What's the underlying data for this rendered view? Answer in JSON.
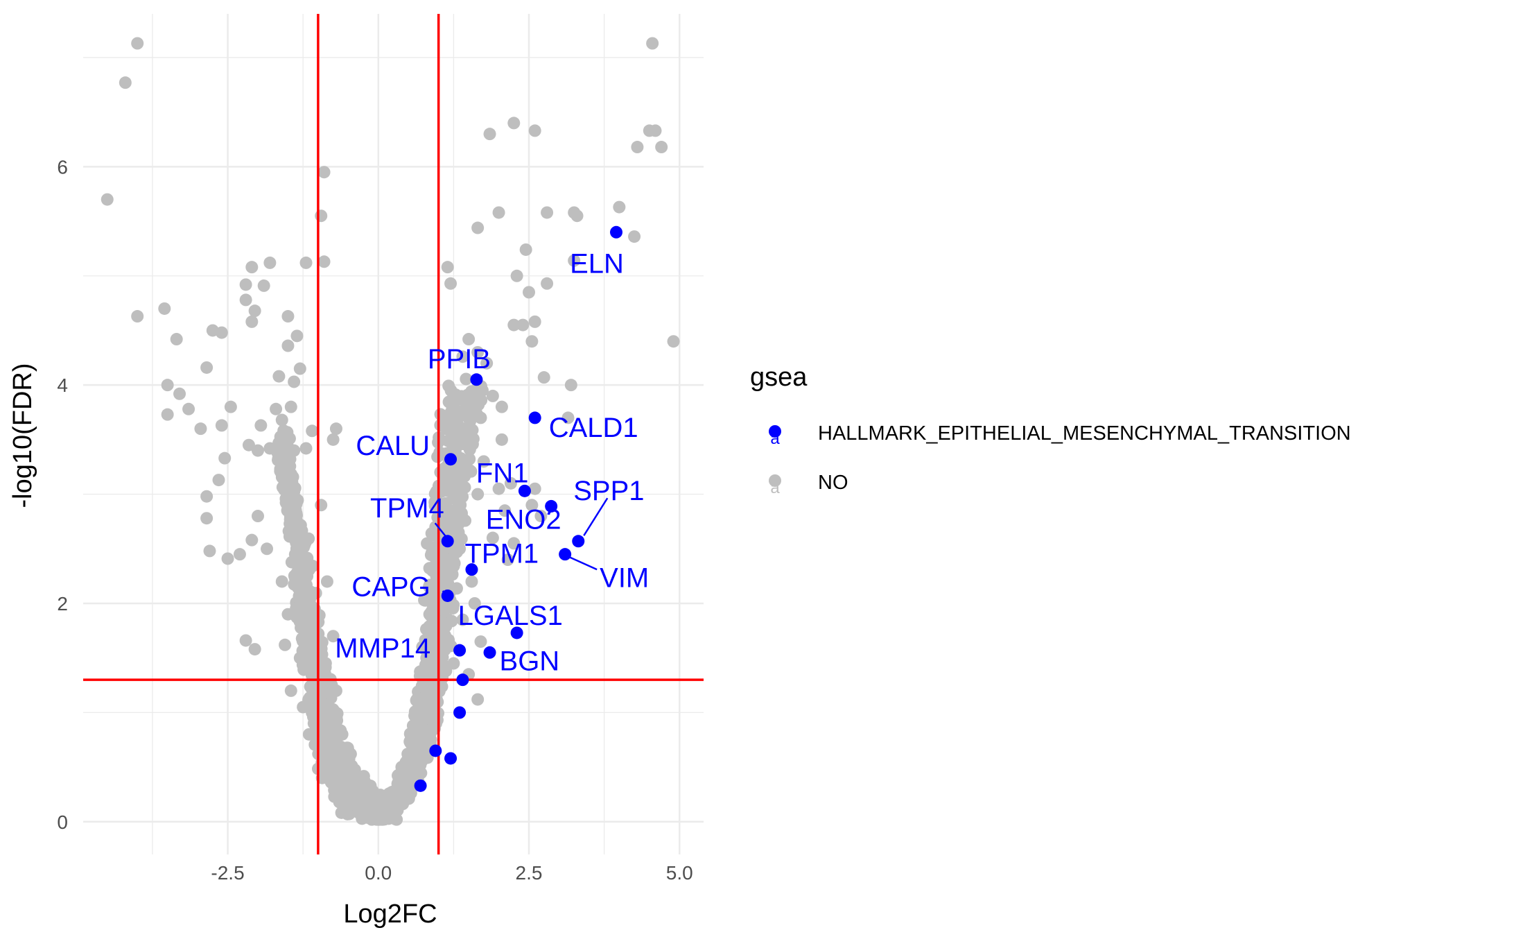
{
  "chart_data": {
    "type": "scatter",
    "title": "",
    "xlabel": "Log2FC",
    "ylabel": "-log10(FDR)",
    "xlim": [
      -4.9,
      5.4
    ],
    "ylim": [
      -0.3,
      7.4
    ],
    "x_ticks": [
      -2.5,
      0.0,
      2.5,
      5.0
    ],
    "x_tick_labels": [
      "-2.5",
      "0.0",
      "2.5",
      "5.0"
    ],
    "y_ticks": [
      0,
      2,
      4,
      6
    ],
    "y_tick_labels": [
      "0",
      "2",
      "4",
      "6"
    ],
    "grid": true,
    "threshold_lines": {
      "vertical": [
        -1,
        1
      ],
      "horizontal": [
        1.3
      ],
      "color": "#ff0000"
    },
    "legend": {
      "title": "gsea",
      "position": "right",
      "entries": [
        {
          "label": "HALLMARK_EPITHELIAL_MESENCHYMAL_TRANSITION",
          "color": "#0000ff"
        },
        {
          "label": "NO",
          "color": "#bebebe"
        }
      ]
    },
    "series": [
      {
        "name": "HALLMARK_EPITHELIAL_MESENCHYMAL_TRANSITION",
        "color": "#0000ff",
        "points": [
          {
            "x": 3.95,
            "y": 5.4,
            "label": "ELN"
          },
          {
            "x": 1.63,
            "y": 4.05,
            "label": "PPIB"
          },
          {
            "x": 2.6,
            "y": 3.7,
            "label": "CALD1"
          },
          {
            "x": 1.2,
            "y": 3.32,
            "label": "CALU"
          },
          {
            "x": 2.43,
            "y": 3.03,
            "label": "FN1"
          },
          {
            "x": 2.87,
            "y": 2.89,
            "label": "ENO2"
          },
          {
            "x": 3.32,
            "y": 2.57,
            "label": "SPP1"
          },
          {
            "x": 3.1,
            "y": 2.45,
            "label": "VIM"
          },
          {
            "x": 1.15,
            "y": 2.57,
            "label": "TPM4"
          },
          {
            "x": 1.55,
            "y": 2.31,
            "label": "TPM1"
          },
          {
            "x": 1.15,
            "y": 2.07,
            "label": "CAPG"
          },
          {
            "x": 2.3,
            "y": 1.73,
            "label": "LGALS1"
          },
          {
            "x": 1.85,
            "y": 1.55,
            "label": "BGN"
          },
          {
            "x": 1.35,
            "y": 1.57,
            "label": "MMP14"
          },
          {
            "x": 1.4,
            "y": 1.3
          },
          {
            "x": 1.35,
            "y": 1.0
          },
          {
            "x": 1.2,
            "y": 0.58
          },
          {
            "x": 0.95,
            "y": 0.65
          },
          {
            "x": 0.7,
            "y": 0.33
          }
        ]
      },
      {
        "name": "NO",
        "color": "#bebebe",
        "points": [
          {
            "x": -4.5,
            "y": 5.7
          },
          {
            "x": -4.2,
            "y": 6.77
          },
          {
            "x": -4.0,
            "y": 7.13
          },
          {
            "x": -4.0,
            "y": 4.63
          },
          {
            "x": -3.55,
            "y": 4.7
          },
          {
            "x": -3.35,
            "y": 4.42
          },
          {
            "x": -3.5,
            "y": 4.0
          },
          {
            "x": -3.3,
            "y": 3.92
          },
          {
            "x": -3.5,
            "y": 3.73
          },
          {
            "x": -3.15,
            "y": 3.78
          },
          {
            "x": -2.95,
            "y": 3.6
          },
          {
            "x": -2.85,
            "y": 4.16
          },
          {
            "x": -2.75,
            "y": 4.5
          },
          {
            "x": -2.6,
            "y": 4.48
          },
          {
            "x": -2.6,
            "y": 3.63
          },
          {
            "x": -2.45,
            "y": 3.8
          },
          {
            "x": -2.55,
            "y": 3.33
          },
          {
            "x": -2.65,
            "y": 3.13
          },
          {
            "x": -2.85,
            "y": 2.98
          },
          {
            "x": -2.85,
            "y": 2.78
          },
          {
            "x": -2.8,
            "y": 2.48
          },
          {
            "x": -2.5,
            "y": 2.41
          },
          {
            "x": -2.3,
            "y": 2.45
          },
          {
            "x": -2.1,
            "y": 2.58
          },
          {
            "x": -2.2,
            "y": 1.66
          },
          {
            "x": -2.05,
            "y": 1.58
          },
          {
            "x": -2.1,
            "y": 5.08
          },
          {
            "x": -2.2,
            "y": 4.92
          },
          {
            "x": -1.8,
            "y": 5.12
          },
          {
            "x": -1.9,
            "y": 4.91
          },
          {
            "x": -2.2,
            "y": 4.78
          },
          {
            "x": -2.05,
            "y": 4.68
          },
          {
            "x": -2.1,
            "y": 4.58
          },
          {
            "x": -1.5,
            "y": 4.63
          },
          {
            "x": -1.35,
            "y": 4.45
          },
          {
            "x": -1.5,
            "y": 4.36
          },
          {
            "x": -1.3,
            "y": 4.15
          },
          {
            "x": -1.65,
            "y": 4.08
          },
          {
            "x": -1.4,
            "y": 4.03
          },
          {
            "x": -1.7,
            "y": 3.78
          },
          {
            "x": -1.45,
            "y": 3.8
          },
          {
            "x": -1.95,
            "y": 3.63
          },
          {
            "x": -1.6,
            "y": 3.68
          },
          {
            "x": -1.2,
            "y": 5.12
          },
          {
            "x": -0.9,
            "y": 5.13
          },
          {
            "x": -0.95,
            "y": 5.55
          },
          {
            "x": -0.9,
            "y": 5.95
          },
          {
            "x": -1.1,
            "y": 3.58
          },
          {
            "x": -0.75,
            "y": 3.5
          },
          {
            "x": -0.7,
            "y": 3.6
          },
          {
            "x": -2.15,
            "y": 3.45
          },
          {
            "x": -2.0,
            "y": 3.4
          },
          {
            "x": -1.8,
            "y": 3.42
          },
          {
            "x": -1.6,
            "y": 3.35
          },
          {
            "x": -1.4,
            "y": 3.4
          },
          {
            "x": -1.2,
            "y": 3.42
          },
          {
            "x": -2.0,
            "y": 2.8
          },
          {
            "x": -1.85,
            "y": 2.5
          },
          {
            "x": -1.6,
            "y": 2.2
          },
          {
            "x": -1.5,
            "y": 1.9
          },
          {
            "x": -1.55,
            "y": 1.62
          },
          {
            "x": -1.3,
            "y": 1.5
          },
          {
            "x": -1.45,
            "y": 1.2
          },
          {
            "x": -1.25,
            "y": 1.05
          },
          {
            "x": -1.15,
            "y": 0.8
          },
          {
            "x": -0.95,
            "y": 2.9
          },
          {
            "x": -0.85,
            "y": 2.2
          },
          {
            "x": -0.75,
            "y": 1.7
          },
          {
            "x": -0.7,
            "y": 1.2
          },
          {
            "x": -0.6,
            "y": 0.8
          },
          {
            "x": -0.5,
            "y": 0.55
          },
          {
            "x": -0.4,
            "y": 0.38
          },
          {
            "x": -0.3,
            "y": 0.25
          },
          {
            "x": -0.2,
            "y": 0.15
          },
          {
            "x": -0.1,
            "y": 0.08
          },
          {
            "x": 0.0,
            "y": 0.05
          },
          {
            "x": 0.1,
            "y": 0.08
          },
          {
            "x": 0.2,
            "y": 0.15
          },
          {
            "x": 0.3,
            "y": 0.25
          },
          {
            "x": 0.4,
            "y": 0.38
          },
          {
            "x": 0.5,
            "y": 0.55
          },
          {
            "x": 0.6,
            "y": 0.8
          },
          {
            "x": 0.7,
            "y": 1.1
          },
          {
            "x": 0.8,
            "y": 1.5
          },
          {
            "x": 0.85,
            "y": 1.9
          },
          {
            "x": 0.9,
            "y": 2.3
          },
          {
            "x": 0.95,
            "y": 2.7
          },
          {
            "x": 1.05,
            "y": 3.2
          },
          {
            "x": 1.15,
            "y": 3.6
          },
          {
            "x": 1.25,
            "y": 3.9
          },
          {
            "x": 1.15,
            "y": 5.08
          },
          {
            "x": 1.2,
            "y": 4.93
          },
          {
            "x": 1.5,
            "y": 4.42
          },
          {
            "x": 1.4,
            "y": 4.26
          },
          {
            "x": 1.65,
            "y": 4.3
          },
          {
            "x": 1.8,
            "y": 4.2
          },
          {
            "x": 1.6,
            "y": 3.95
          },
          {
            "x": 1.7,
            "y": 3.7
          },
          {
            "x": 1.9,
            "y": 3.9
          },
          {
            "x": 2.05,
            "y": 3.8
          },
          {
            "x": 1.5,
            "y": 3.5
          },
          {
            "x": 1.75,
            "y": 3.3
          },
          {
            "x": 1.65,
            "y": 3.0
          },
          {
            "x": 2.0,
            "y": 3.05
          },
          {
            "x": 2.2,
            "y": 3.1
          },
          {
            "x": 2.1,
            "y": 2.85
          },
          {
            "x": 1.9,
            "y": 2.6
          },
          {
            "x": 2.25,
            "y": 2.55
          },
          {
            "x": 2.55,
            "y": 2.9
          },
          {
            "x": 2.7,
            "y": 2.8
          },
          {
            "x": 2.6,
            "y": 3.05
          },
          {
            "x": 1.55,
            "y": 2.2
          },
          {
            "x": 1.4,
            "y": 1.85
          },
          {
            "x": 1.25,
            "y": 1.45
          },
          {
            "x": 1.5,
            "y": 1.35
          },
          {
            "x": 1.65,
            "y": 1.12
          },
          {
            "x": 2.25,
            "y": 4.55
          },
          {
            "x": 2.4,
            "y": 4.55
          },
          {
            "x": 2.55,
            "y": 4.4
          },
          {
            "x": 2.6,
            "y": 4.58
          },
          {
            "x": 2.5,
            "y": 4.85
          },
          {
            "x": 2.8,
            "y": 4.93
          },
          {
            "x": 2.3,
            "y": 5.0
          },
          {
            "x": 2.0,
            "y": 5.58
          },
          {
            "x": 1.65,
            "y": 5.44
          },
          {
            "x": 2.8,
            "y": 5.58
          },
          {
            "x": 3.25,
            "y": 5.58
          },
          {
            "x": 3.3,
            "y": 5.55
          },
          {
            "x": 4.0,
            "y": 5.63
          },
          {
            "x": 4.25,
            "y": 5.36
          },
          {
            "x": 2.45,
            "y": 5.24
          },
          {
            "x": 3.25,
            "y": 5.14
          },
          {
            "x": 2.75,
            "y": 4.07
          },
          {
            "x": 3.2,
            "y": 4.0
          },
          {
            "x": 3.15,
            "y": 3.7
          },
          {
            "x": 1.85,
            "y": 6.3
          },
          {
            "x": 2.25,
            "y": 6.4
          },
          {
            "x": 2.6,
            "y": 6.33
          },
          {
            "x": 4.3,
            "y": 6.18
          },
          {
            "x": 4.5,
            "y": 6.33
          },
          {
            "x": 4.6,
            "y": 6.33
          },
          {
            "x": 4.7,
            "y": 6.18
          },
          {
            "x": 4.55,
            "y": 7.13
          },
          {
            "x": 4.9,
            "y": 4.4
          },
          {
            "x": 2.05,
            "y": 3.5
          },
          {
            "x": 2.15,
            "y": 2.4
          },
          {
            "x": 1.6,
            "y": 2.0
          },
          {
            "x": 1.35,
            "y": 2.5
          },
          {
            "x": 1.3,
            "y": 2.95
          },
          {
            "x": 1.7,
            "y": 1.65
          }
        ]
      }
    ],
    "dense_cloud": {
      "description_series": "NO",
      "left_arm": [
        [
          -1.6,
          3.5
        ],
        [
          -1.4,
          2.8
        ],
        [
          -1.25,
          2.2
        ],
        [
          -1.1,
          1.6
        ],
        [
          -0.95,
          1.1
        ],
        [
          -0.8,
          0.7
        ],
        [
          -0.6,
          0.4
        ],
        [
          -0.35,
          0.18
        ],
        [
          0.0,
          0.05
        ]
      ],
      "right_arm": [
        [
          0.0,
          0.05
        ],
        [
          0.3,
          0.2
        ],
        [
          0.55,
          0.45
        ],
        [
          0.75,
          0.8
        ],
        [
          0.9,
          1.3
        ],
        [
          1.0,
          1.9
        ],
        [
          1.1,
          2.6
        ],
        [
          1.25,
          3.3
        ],
        [
          1.45,
          4.0
        ]
      ]
    }
  }
}
